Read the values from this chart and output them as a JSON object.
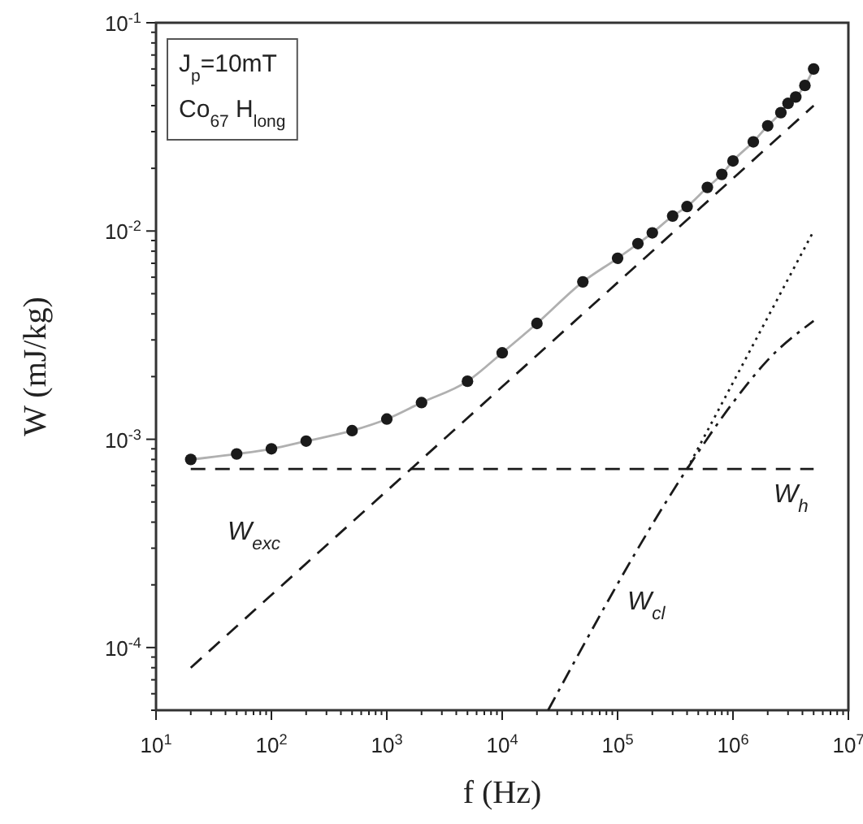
{
  "chart_data": {
    "type": "scatter",
    "xlabel": "f (Hz)",
    "ylabel": "W (mJ/kg)",
    "log": "xy",
    "xlim": [
      10,
      10000000
    ],
    "ylim": [
      5e-05,
      0.1
    ],
    "marker": "circle",
    "grid": false,
    "xticks": [
      {
        "value": 10,
        "label": "10$^{1}$"
      },
      {
        "value": 20,
        "label": null
      },
      {
        "value": 30,
        "label": null
      },
      {
        "value": 40,
        "label": null
      },
      {
        "value": 50,
        "label": null
      },
      {
        "value": 60,
        "label": null
      },
      {
        "value": 70,
        "label": null
      },
      {
        "value": 80,
        "label": null
      },
      {
        "value": 90,
        "label": null
      },
      {
        "value": 100,
        "label": "10$^{2}$"
      },
      {
        "value": 200,
        "label": null
      },
      {
        "value": 300,
        "label": null
      },
      {
        "value": 400,
        "label": null
      },
      {
        "value": 500,
        "label": null
      },
      {
        "value": 600,
        "label": null
      },
      {
        "value": 700,
        "label": null
      },
      {
        "value": 800,
        "label": null
      },
      {
        "value": 900,
        "label": null
      },
      {
        "value": 1000,
        "label": "10$^{3}$"
      },
      {
        "value": 2000,
        "label": null
      },
      {
        "value": 3000,
        "label": null
      },
      {
        "value": 4000,
        "label": null
      },
      {
        "value": 5000,
        "label": null
      },
      {
        "value": 6000,
        "label": null
      },
      {
        "value": 7000,
        "label": null
      },
      {
        "value": 8000,
        "label": null
      },
      {
        "value": 9000,
        "label": null
      },
      {
        "value": 10000,
        "label": "10$^{4}$"
      },
      {
        "value": 20000,
        "label": null
      },
      {
        "value": 30000,
        "label": null
      },
      {
        "value": 40000,
        "label": null
      },
      {
        "value": 50000,
        "label": null
      },
      {
        "value": 60000,
        "label": null
      },
      {
        "value": 70000,
        "label": null
      },
      {
        "value": 80000,
        "label": null
      },
      {
        "value": 90000,
        "label": null
      },
      {
        "value": 100000,
        "label": "10$^{5}$"
      },
      {
        "value": 200000,
        "label": null
      },
      {
        "value": 300000,
        "label": null
      },
      {
        "value": 400000,
        "label": null
      },
      {
        "value": 500000,
        "label": null
      },
      {
        "value": 600000,
        "label": null
      },
      {
        "value": 700000,
        "label": null
      },
      {
        "value": 800000,
        "label": null
      },
      {
        "value": 900000,
        "label": null
      },
      {
        "value": 1000000,
        "label": "10$^{6}$"
      },
      {
        "value": 2000000,
        "label": null
      },
      {
        "value": 3000000,
        "label": null
      },
      {
        "value": 4000000,
        "label": null
      },
      {
        "value": 5000000,
        "label": null
      },
      {
        "value": 6000000,
        "label": null
      },
      {
        "value": 7000000,
        "label": null
      },
      {
        "value": 8000000,
        "label": null
      },
      {
        "value": 9000000,
        "label": null
      },
      {
        "value": 10000000,
        "label": "10$^{7}$"
      }
    ],
    "yticks": [
      {
        "value": 5e-05,
        "label": null
      },
      {
        "value": 6e-05,
        "label": null
      },
      {
        "value": 7e-05,
        "label": null
      },
      {
        "value": 8e-05,
        "label": null
      },
      {
        "value": 9e-05,
        "label": null
      },
      {
        "value": 0.0001,
        "label": "10$^{-4}$"
      },
      {
        "value": 0.0002,
        "label": null
      },
      {
        "value": 0.0003,
        "label": null
      },
      {
        "value": 0.0004,
        "label": null
      },
      {
        "value": 0.0005,
        "label": null
      },
      {
        "value": 0.0006,
        "label": null
      },
      {
        "value": 0.0007,
        "label": null
      },
      {
        "value": 0.0008,
        "label": null
      },
      {
        "value": 0.0009,
        "label": null
      },
      {
        "value": 0.001,
        "label": "10$^{-3}$"
      },
      {
        "value": 0.002,
        "label": null
      },
      {
        "value": 0.003,
        "label": null
      },
      {
        "value": 0.004,
        "label": null
      },
      {
        "value": 0.005,
        "label": null
      },
      {
        "value": 0.006,
        "label": null
      },
      {
        "value": 0.007,
        "label": null
      },
      {
        "value": 0.008,
        "label": null
      },
      {
        "value": 0.009,
        "label": null
      },
      {
        "value": 0.01,
        "label": "10$^{-2}$"
      },
      {
        "value": 0.02,
        "label": null
      },
      {
        "value": 0.03,
        "label": null
      },
      {
        "value": 0.04,
        "label": null
      },
      {
        "value": 0.05,
        "label": null
      },
      {
        "value": 0.06,
        "label": null
      },
      {
        "value": 0.07,
        "label": null
      },
      {
        "value": 0.08,
        "label": null
      },
      {
        "value": 0.09,
        "label": null
      },
      {
        "value": 0.1,
        "label": "10$^{-1}$"
      }
    ],
    "series": [
      {
        "type": "line",
        "color": "#b0b0b0",
        "line_style": "solid",
        "marker": "none",
        "x": [
          20,
          50,
          100,
          200,
          500,
          1000,
          2000,
          5000,
          10000,
          20000,
          50000,
          100000,
          150000,
          200000,
          300000,
          400000,
          600000,
          800000,
          1000000,
          1500000,
          2000000,
          2600000,
          3000000,
          3500000,
          4200000,
          5000000
        ],
        "values": [
          0.0008,
          0.00085,
          0.0009,
          0.00098,
          0.0011,
          0.00125,
          0.0015,
          0.0019,
          0.0026,
          0.0036,
          0.0057,
          0.0074,
          0.0087,
          0.0098,
          0.0118,
          0.0131,
          0.0162,
          0.0187,
          0.0217,
          0.0268,
          0.032,
          0.037,
          0.041,
          0.044,
          0.05,
          0.06
        ]
      },
      {
        "color": "#1a1a1a",
        "x": [
          20,
          50,
          100,
          200,
          500,
          1000,
          2000,
          5000,
          10000,
          20000,
          50000,
          100000,
          150000,
          200000,
          300000,
          400000,
          600000,
          800000,
          1000000,
          1500000,
          2000000,
          2600000,
          3000000,
          3500000,
          4200000,
          5000000
        ],
        "values": [
          0.0008,
          0.00085,
          0.0009,
          0.00098,
          0.0011,
          0.00125,
          0.0015,
          0.0019,
          0.0026,
          0.0036,
          0.0057,
          0.0074,
          0.0087,
          0.0098,
          0.0118,
          0.0131,
          0.0162,
          0.0187,
          0.0217,
          0.0268,
          0.032,
          0.037,
          0.041,
          0.044,
          0.05,
          0.06
        ]
      },
      {
        "type": "line",
        "color": "#1a1a1a",
        "line_style": "dashed",
        "marker": "none",
        "x": [
          20,
          5000000
        ],
        "values": [
          0.00072,
          0.00072
        ]
      },
      {
        "type": "line",
        "color": "#1a1a1a",
        "line_style": "dashed",
        "marker": "none",
        "x": [
          20,
          5000000
        ],
        "values": [
          8e-05,
          0.04
        ]
      },
      {
        "type": "line",
        "color": "#1a1a1a",
        "line_style": "dashdot",
        "marker": "none",
        "x": [
          25000,
          400000,
          1000000,
          2000000,
          5000000
        ],
        "values": [
          5e-05,
          0.00072,
          0.0015,
          0.0024,
          0.0037
        ]
      },
      {
        "type": "line",
        "color": "#1a1a1a",
        "line_style": "dotted",
        "marker": "none",
        "x": [
          400000,
          5000000
        ],
        "values": [
          0.00072,
          0.01
        ]
      }
    ],
    "annotations": [
      "J$_{p}$=10mT",
      "Co$_{67}$ H$_{long}$",
      "W$_{exc}$",
      "W$_{h}$",
      "W$_{cl}$"
    ]
  }
}
